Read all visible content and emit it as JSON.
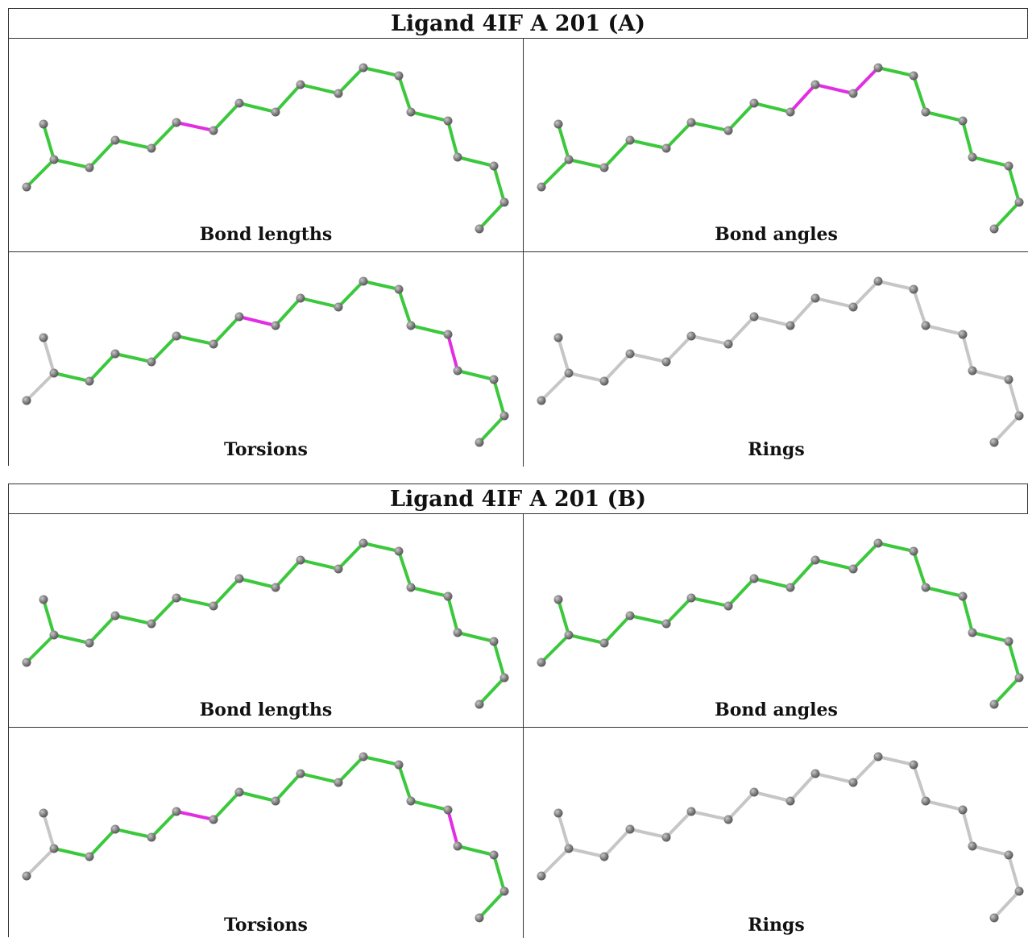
{
  "colors": {
    "ok": "#3cc83c",
    "outlier": "#e22ee2",
    "none": "#c6c6c6",
    "atom": "#808080",
    "atom_dark": "#5a5a5a"
  },
  "blocks": [
    {
      "title": "Ligand 4IF A 201 (A)",
      "panels": [
        {
          "caption": "Bond lengths",
          "highlight": [
            6
          ]
        },
        {
          "caption": "Bond angles",
          "highlight": [
            9,
            10,
            11
          ]
        },
        {
          "caption": "Torsions",
          "highlight": [
            8,
            15
          ],
          "grey": [
            0,
            1
          ]
        },
        {
          "caption": "Rings",
          "all_grey": true
        }
      ]
    },
    {
      "title": "Ligand 4IF A 201 (B)",
      "panels": [
        {
          "caption": "Bond lengths",
          "highlight": []
        },
        {
          "caption": "Bond angles",
          "highlight": []
        },
        {
          "caption": "Torsions",
          "highlight": [
            6,
            15
          ],
          "grey": [
            0,
            1
          ]
        },
        {
          "caption": "Rings",
          "all_grey": true
        }
      ]
    }
  ]
}
